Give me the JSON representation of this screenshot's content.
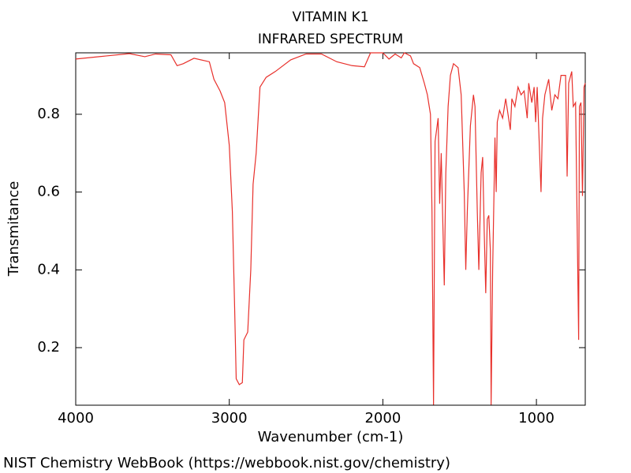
{
  "chart_data": {
    "type": "line",
    "title": "VITAMIN K1",
    "subtitle": "INFRARED SPECTRUM",
    "x_label": "Wavenumber (cm-1)",
    "y_label": "Transmitance",
    "source": "NIST Chemistry WebBook (https://webbook.nist.gov/chemistry)",
    "xlim": [
      4000,
      682
    ],
    "ylim": [
      0.052,
      0.958
    ],
    "xticks": [
      4000,
      3000,
      2000,
      1000
    ],
    "yticks": [
      0.2,
      0.4,
      0.6,
      0.8
    ],
    "grid": false,
    "series": [
      {
        "color": "#e8302b",
        "x": [
          4000,
          3800,
          3650,
          3550,
          3480,
          3380,
          3340,
          3300,
          3230,
          3130,
          3100,
          3060,
          3030,
          3000,
          2980,
          2965,
          2955,
          2935,
          2915,
          2905,
          2880,
          2860,
          2845,
          2825,
          2800,
          2760,
          2700,
          2600,
          2500,
          2400,
          2300,
          2200,
          2120,
          2080,
          2000,
          1960,
          1920,
          1880,
          1860,
          1820,
          1800,
          1760,
          1730,
          1710,
          1690,
          1680,
          1670,
          1660,
          1640,
          1630,
          1620,
          1600,
          1590,
          1575,
          1560,
          1540,
          1510,
          1490,
          1470,
          1460,
          1450,
          1430,
          1410,
          1400,
          1385,
          1375,
          1360,
          1350,
          1340,
          1330,
          1320,
          1310,
          1300,
          1295,
          1285,
          1270,
          1262,
          1255,
          1240,
          1220,
          1200,
          1185,
          1170,
          1160,
          1140,
          1120,
          1100,
          1080,
          1060,
          1050,
          1030,
          1015,
          1005,
          995,
          970,
          960,
          945,
          920,
          900,
          880,
          860,
          840,
          810,
          800,
          790,
          770,
          760,
          745,
          725,
          720,
          710,
          700,
          690,
          682
        ],
        "values": [
          0.942,
          0.95,
          0.956,
          0.948,
          0.955,
          0.953,
          0.925,
          0.93,
          0.944,
          0.935,
          0.89,
          0.86,
          0.83,
          0.72,
          0.55,
          0.3,
          0.12,
          0.105,
          0.11,
          0.22,
          0.24,
          0.4,
          0.62,
          0.7,
          0.87,
          0.895,
          0.91,
          0.94,
          0.955,
          0.955,
          0.935,
          0.925,
          0.922,
          0.958,
          0.958,
          0.942,
          0.955,
          0.945,
          0.958,
          0.95,
          0.93,
          0.92,
          0.88,
          0.85,
          0.8,
          0.55,
          0.053,
          0.73,
          0.79,
          0.57,
          0.7,
          0.36,
          0.65,
          0.82,
          0.9,
          0.93,
          0.92,
          0.85,
          0.6,
          0.4,
          0.55,
          0.77,
          0.85,
          0.82,
          0.55,
          0.4,
          0.65,
          0.69,
          0.5,
          0.34,
          0.53,
          0.54,
          0.45,
          0.053,
          0.4,
          0.74,
          0.6,
          0.78,
          0.81,
          0.79,
          0.84,
          0.8,
          0.76,
          0.84,
          0.82,
          0.87,
          0.85,
          0.86,
          0.79,
          0.88,
          0.83,
          0.87,
          0.78,
          0.87,
          0.6,
          0.79,
          0.85,
          0.89,
          0.81,
          0.85,
          0.84,
          0.9,
          0.9,
          0.64,
          0.88,
          0.91,
          0.82,
          0.83,
          0.22,
          0.82,
          0.83,
          0.59,
          0.87,
          0.88
        ]
      }
    ]
  }
}
